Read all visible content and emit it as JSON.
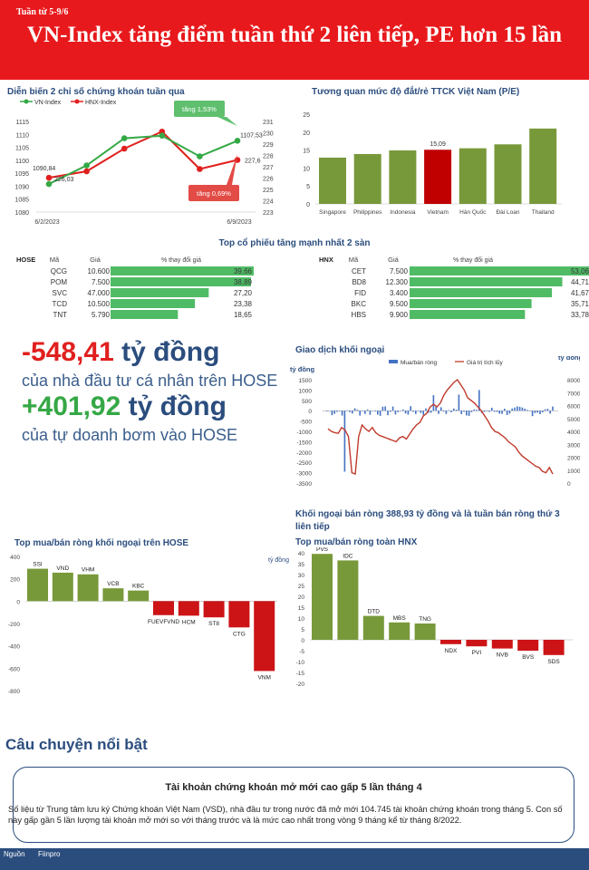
{
  "header": {
    "week": "Tuần từ 5-9/6",
    "title": "VN-Index tăng điểm tuần thứ 2 liên tiếp, PE hơn 15 lần"
  },
  "colors": {
    "green": "#35a845",
    "red": "#e0201e",
    "olive": "#78993a",
    "navy": "#2b4d7e",
    "bar_blue": "#4472c4"
  },
  "index_chart": {
    "title": "Diễn biến 2 chỉ số chứng khoán tuần qua",
    "legend": [
      "VN-Index",
      "HNX-Index"
    ],
    "left_ticks": [
      "1115",
      "1110",
      "1105",
      "1100",
      "1095",
      "1090",
      "1085",
      "1080"
    ],
    "right_ticks": [
      "231",
      "230",
      "229",
      "228",
      "227",
      "226",
      "225",
      "224",
      "223"
    ],
    "x_labels": [
      "6/2/2023",
      "6/9/2023"
    ],
    "vn_values": [
      1090.84,
      1098,
      1108.5,
      1109.5,
      1101.5,
      1107.53
    ],
    "hnx_values": [
      226.03,
      226.6,
      228.6,
      230.1,
      226.8,
      227.6
    ],
    "labels": {
      "vn_start": "1090,84",
      "vn_end": "1107,53",
      "hnx_start": "226,03",
      "hnx_end": "227,6"
    },
    "callouts": {
      "vn": "tăng 1,53%",
      "hnx": "tăng 0,69%"
    }
  },
  "pe_chart": {
    "title": "Tương quan mức độ đắt/rẻ TTCK Việt Nam (P/E)",
    "countries": [
      "Singapore",
      "Philippines",
      "Indonesia",
      "Vietnam",
      "Hàn Quốc",
      "Đài Loan",
      "Thailand"
    ],
    "values": [
      12.9,
      13.9,
      14.9,
      15.09,
      15.5,
      16.6,
      21.0
    ],
    "ticks": [
      "25",
      "20",
      "15",
      "10",
      "5",
      "0"
    ],
    "vn_label": "15,09"
  },
  "top_gainers": {
    "title": "Top cổ phiếu tăng mạnh nhất 2 sàn",
    "col_code": "Mã",
    "col_price": "Giá",
    "col_change": "% thay đổi giá",
    "hose": {
      "exchange": "HOSE",
      "rows": [
        {
          "code": "QCG",
          "price": "10.600",
          "change": "39,66"
        },
        {
          "code": "POM",
          "price": "7.500",
          "change": "38,89"
        },
        {
          "code": "SVC",
          "price": "47.000",
          "change": "27,20"
        },
        {
          "code": "TCD",
          "price": "10.500",
          "change": "23,38"
        },
        {
          "code": "TNT",
          "price": "5.790",
          "change": "18,65"
        }
      ]
    },
    "hnx": {
      "exchange": "HNX",
      "rows": [
        {
          "code": "CET",
          "price": "7.500",
          "change": "53,06"
        },
        {
          "code": "BD8",
          "price": "12.300",
          "change": "44,71"
        },
        {
          "code": "FID",
          "price": "3.400",
          "change": "41,67"
        },
        {
          "code": "BKC",
          "price": "9.500",
          "change": "35,71"
        },
        {
          "code": "HBS",
          "price": "9.900",
          "change": "33,78"
        }
      ]
    }
  },
  "highlights": {
    "individual_value": "-548,41",
    "individual_unit": "tỷ đồng",
    "individual_desc": "của nhà đầu tư cá nhân trên HOSE",
    "prop_value": "+401,92",
    "prop_unit": "tỷ đồng",
    "prop_desc": "của tự doanh bơm vào HOSE"
  },
  "foreign_chart": {
    "title": "Giao dịch khối ngoại",
    "legend_bar": "Mua/bán ròng",
    "legend_line": "Giá trị tích lũy",
    "left_unit": "tỷ đồng",
    "right_unit": "tỷ đồng",
    "left_ticks": [
      "1500",
      "1000",
      "500",
      "0",
      "-500",
      "-1000",
      "-1500",
      "-2000",
      "-2500",
      "-3000",
      "-3500"
    ],
    "right_ticks": [
      "8000",
      "7000",
      "6000",
      "5000",
      "4000",
      "3000",
      "2000",
      "1000",
      "0"
    ],
    "caption": "Khối ngoại bán ròng 388,93 tỷ đồng và là tuần bán ròng thứ 3 liên tiếp"
  },
  "hose_foreign": {
    "title": "Top mua/bán ròng khối ngoại trên HOSE",
    "unit": "tỷ đồng",
    "ticks": [
      "400",
      "200",
      "0",
      "-200",
      "-400",
      "-600",
      "-800"
    ],
    "codes": [
      "SSI",
      "VND",
      "VHM",
      "VCB",
      "KBC",
      "FUEVFVND",
      "HCM",
      "ST8",
      "CTG",
      "VNM"
    ],
    "values": [
      290,
      255,
      240,
      115,
      95,
      -125,
      -130,
      -145,
      -235,
      -625
    ]
  },
  "hnx_foreign": {
    "title": "Top mua/bán ròng toàn HNX",
    "ticks": [
      "40",
      "35",
      "30",
      "25",
      "20",
      "15",
      "10",
      "5",
      "0",
      "-5",
      "-10",
      "-15",
      "-20"
    ],
    "codes": [
      "PVS",
      "IDC",
      "DTD",
      "MBS",
      "TNG",
      "NDX",
      "PVI",
      "NVB",
      "BVS",
      "SDS"
    ],
    "values": [
      39.5,
      36.5,
      11,
      8,
      7.5,
      -2,
      -3,
      -4,
      -5,
      -7
    ]
  },
  "story": {
    "section": "Câu chuyện nổi bật",
    "headline": "Tài khoản chứng khoán mở mới cao gấp 5 lần tháng 4",
    "body": "Số liệu từ Trung tâm lưu ký Chứng khoán Việt Nam (VSD), nhà đầu tư trong nước đã mở mới 104.745 tài khoản chứng khoán trong tháng 5. Con số này gấp gần 5 lần lượng tài khoản mở mới so với tháng trước và là mức cao nhất trong vòng 9 tháng kể từ tháng 8/2022."
  },
  "footer": {
    "source_label": "Nguồn",
    "source": "Fiinpro"
  }
}
